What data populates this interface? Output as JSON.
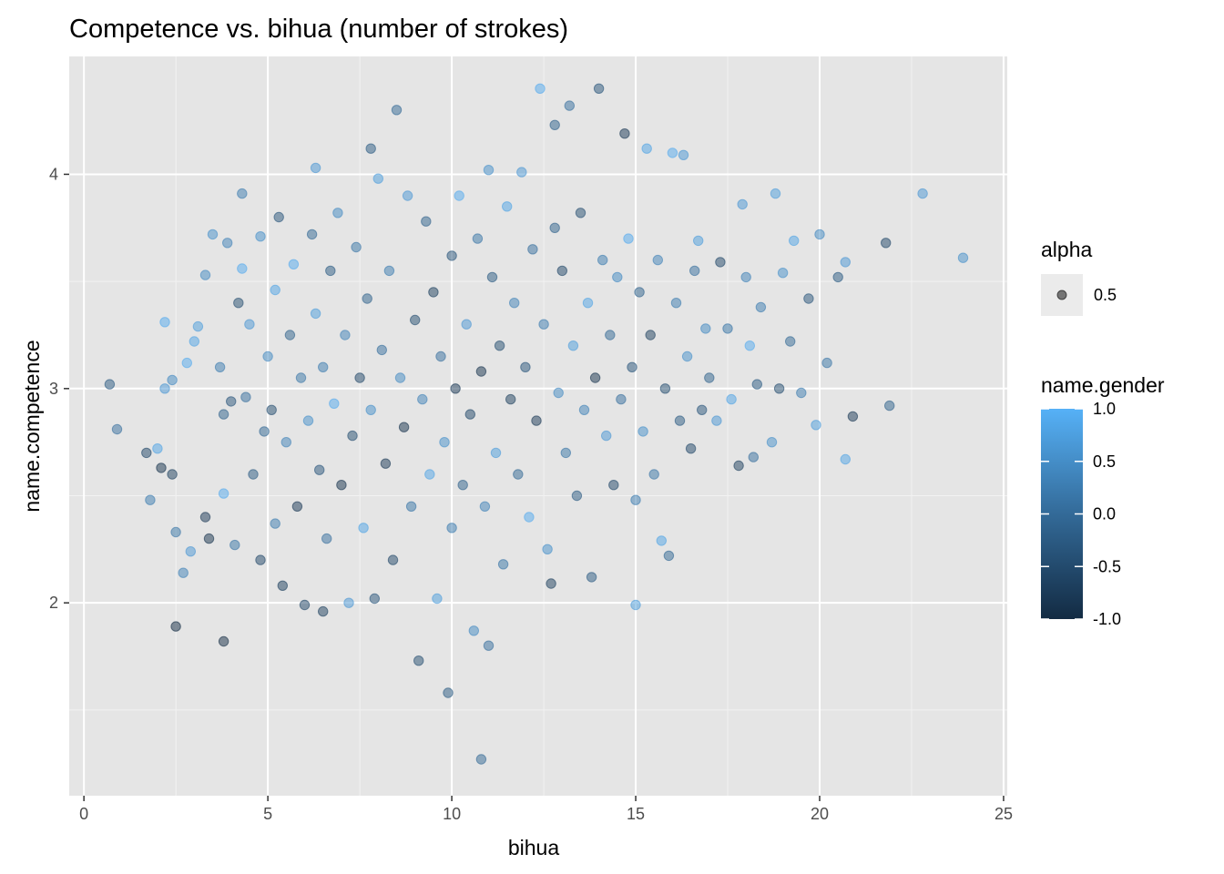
{
  "chart_data": {
    "type": "scatter",
    "title": "Competence vs. bihua (number of strokes)",
    "xlabel": "bihua",
    "ylabel": "name.competence",
    "xlim": [
      -0.4,
      25.1
    ],
    "ylim": [
      1.1,
      4.55
    ],
    "x_ticks": [
      0,
      5,
      10,
      15,
      20,
      25
    ],
    "x_tick_labels": [
      "0",
      "5",
      "10",
      "15",
      "20",
      "25"
    ],
    "y_ticks": [
      2,
      3,
      4
    ],
    "y_tick_labels": [
      "2",
      "3",
      "4"
    ],
    "grid": true,
    "background": "#e5e5e5",
    "point_alpha": 0.5,
    "color_scale": {
      "low": "#132b43",
      "high": "#56b1f7",
      "domain": [
        -1.0,
        1.0
      ]
    },
    "legend": {
      "position": "right",
      "alpha": {
        "title": "alpha",
        "label": "0.5"
      },
      "color": {
        "title": "name.gender",
        "labels": [
          "1.0",
          "0.5",
          "0.0",
          "-0.5",
          "-1.0"
        ],
        "values": [
          1.0,
          0.5,
          0.0,
          -0.5,
          -1.0
        ]
      }
    },
    "points": [
      [
        0.7,
        3.02,
        -0.3
      ],
      [
        0.9,
        2.81,
        0.0
      ],
      [
        1.7,
        2.7,
        -0.6
      ],
      [
        1.8,
        2.48,
        0.2
      ],
      [
        2.0,
        2.72,
        0.8
      ],
      [
        2.1,
        2.63,
        -0.9
      ],
      [
        2.2,
        3.31,
        0.9
      ],
      [
        2.2,
        3.0,
        0.6
      ],
      [
        2.4,
        2.6,
        -0.7
      ],
      [
        2.4,
        3.04,
        0.4
      ],
      [
        2.5,
        1.89,
        -1.0
      ],
      [
        2.5,
        2.33,
        0.1
      ],
      [
        2.7,
        2.14,
        0.3
      ],
      [
        2.8,
        3.12,
        0.9
      ],
      [
        2.9,
        2.24,
        0.6
      ],
      [
        3.0,
        3.22,
        0.8
      ],
      [
        3.1,
        3.29,
        0.7
      ],
      [
        3.3,
        3.53,
        0.4
      ],
      [
        3.3,
        2.4,
        -0.8
      ],
      [
        3.4,
        2.3,
        -0.9
      ],
      [
        3.5,
        3.72,
        0.5
      ],
      [
        3.7,
        3.1,
        0.2
      ],
      [
        3.8,
        2.88,
        -0.2
      ],
      [
        3.8,
        2.51,
        0.9
      ],
      [
        3.8,
        1.82,
        -1.0
      ],
      [
        3.9,
        3.68,
        0.3
      ],
      [
        4.0,
        2.94,
        -0.4
      ],
      [
        4.1,
        2.27,
        0.1
      ],
      [
        4.2,
        3.4,
        -0.5
      ],
      [
        4.3,
        3.91,
        0.2
      ],
      [
        4.3,
        3.56,
        0.9
      ],
      [
        4.4,
        2.96,
        0.0
      ],
      [
        4.5,
        3.3,
        0.6
      ],
      [
        4.6,
        2.6,
        -0.3
      ],
      [
        4.8,
        3.71,
        0.5
      ],
      [
        4.8,
        2.2,
        -0.6
      ],
      [
        4.9,
        2.8,
        -0.1
      ],
      [
        5.0,
        3.15,
        0.4
      ],
      [
        5.1,
        2.9,
        -0.5
      ],
      [
        5.2,
        2.37,
        0.2
      ],
      [
        5.2,
        3.46,
        0.8
      ],
      [
        5.3,
        3.8,
        -0.4
      ],
      [
        5.4,
        2.08,
        -0.7
      ],
      [
        5.5,
        2.75,
        0.3
      ],
      [
        5.6,
        3.25,
        -0.2
      ],
      [
        5.7,
        3.58,
        0.9
      ],
      [
        5.8,
        2.45,
        -0.8
      ],
      [
        5.9,
        3.05,
        0.1
      ],
      [
        6.0,
        1.99,
        -0.6
      ],
      [
        6.1,
        2.85,
        0.5
      ],
      [
        6.2,
        3.72,
        -0.1
      ],
      [
        6.3,
        3.35,
        0.7
      ],
      [
        6.3,
        4.03,
        0.6
      ],
      [
        6.4,
        2.62,
        -0.4
      ],
      [
        6.5,
        1.96,
        -0.7
      ],
      [
        6.5,
        3.1,
        0.2
      ],
      [
        6.6,
        2.3,
        0.0
      ],
      [
        6.7,
        3.55,
        -0.3
      ],
      [
        6.8,
        2.93,
        0.9
      ],
      [
        6.9,
        3.82,
        0.4
      ],
      [
        7.0,
        2.55,
        -0.9
      ],
      [
        7.1,
        3.25,
        0.3
      ],
      [
        7.2,
        2.0,
        0.6
      ],
      [
        7.3,
        2.78,
        -0.5
      ],
      [
        7.4,
        3.66,
        0.1
      ],
      [
        7.5,
        3.05,
        -0.6
      ],
      [
        7.6,
        2.35,
        0.8
      ],
      [
        7.7,
        3.42,
        -0.2
      ],
      [
        7.8,
        2.9,
        0.5
      ],
      [
        7.8,
        4.12,
        -0.3
      ],
      [
        7.9,
        2.02,
        -0.4
      ],
      [
        8.0,
        3.98,
        0.7
      ],
      [
        8.1,
        3.18,
        0.0
      ],
      [
        8.2,
        2.65,
        -0.8
      ],
      [
        8.3,
        3.55,
        0.2
      ],
      [
        8.4,
        2.2,
        -0.6
      ],
      [
        8.5,
        4.3,
        -0.1
      ],
      [
        8.6,
        3.05,
        0.4
      ],
      [
        8.7,
        2.82,
        -0.9
      ],
      [
        8.8,
        3.9,
        0.6
      ],
      [
        8.9,
        2.45,
        0.1
      ],
      [
        9.0,
        3.32,
        -0.5
      ],
      [
        9.1,
        1.73,
        -0.5
      ],
      [
        9.2,
        2.95,
        0.3
      ],
      [
        9.3,
        3.78,
        -0.2
      ],
      [
        9.4,
        2.6,
        0.8
      ],
      [
        9.5,
        3.45,
        -0.7
      ],
      [
        9.6,
        2.02,
        0.7
      ],
      [
        9.7,
        3.15,
        0.0
      ],
      [
        9.8,
        2.75,
        0.5
      ],
      [
        9.9,
        1.58,
        -0.3
      ],
      [
        10.0,
        3.62,
        -0.4
      ],
      [
        10.0,
        2.35,
        0.2
      ],
      [
        10.1,
        3.0,
        -0.8
      ],
      [
        10.2,
        3.9,
        0.9
      ],
      [
        10.3,
        2.55,
        -0.2
      ],
      [
        10.4,
        3.3,
        0.6
      ],
      [
        10.5,
        2.88,
        -0.6
      ],
      [
        10.6,
        1.87,
        0.4
      ],
      [
        10.7,
        3.7,
        0.1
      ],
      [
        10.8,
        1.27,
        -0.1
      ],
      [
        10.8,
        3.08,
        -0.9
      ],
      [
        10.9,
        2.45,
        0.3
      ],
      [
        11.0,
        4.02,
        0.5
      ],
      [
        11.0,
        1.8,
        0.0
      ],
      [
        11.1,
        3.52,
        -0.3
      ],
      [
        11.2,
        2.7,
        0.7
      ],
      [
        11.3,
        3.2,
        -0.5
      ],
      [
        11.4,
        2.18,
        0.1
      ],
      [
        11.5,
        3.85,
        0.8
      ],
      [
        11.6,
        2.95,
        -0.7
      ],
      [
        11.7,
        3.4,
        0.3
      ],
      [
        11.8,
        2.6,
        -0.1
      ],
      [
        11.9,
        4.01,
        0.6
      ],
      [
        12.0,
        3.1,
        -0.4
      ],
      [
        12.1,
        2.4,
        0.9
      ],
      [
        12.2,
        3.65,
        0.0
      ],
      [
        12.3,
        2.85,
        -0.8
      ],
      [
        12.4,
        4.4,
        0.9
      ],
      [
        12.5,
        3.3,
        0.2
      ],
      [
        12.6,
        2.25,
        0.5
      ],
      [
        12.7,
        2.09,
        -0.7
      ],
      [
        12.8,
        3.75,
        -0.2
      ],
      [
        12.8,
        4.23,
        -0.2
      ],
      [
        12.9,
        2.98,
        0.4
      ],
      [
        13.0,
        3.55,
        -0.6
      ],
      [
        13.1,
        2.7,
        0.1
      ],
      [
        13.2,
        4.32,
        0.0
      ],
      [
        13.3,
        3.2,
        0.7
      ],
      [
        13.4,
        2.5,
        -0.3
      ],
      [
        13.5,
        3.82,
        -0.5
      ],
      [
        13.6,
        2.9,
        0.3
      ],
      [
        13.7,
        3.4,
        0.8
      ],
      [
        13.8,
        2.12,
        -0.3
      ],
      [
        13.9,
        3.05,
        -0.9
      ],
      [
        14.0,
        4.4,
        -0.4
      ],
      [
        14.1,
        3.6,
        0.2
      ],
      [
        14.2,
        2.78,
        0.6
      ],
      [
        14.3,
        3.25,
        -0.1
      ],
      [
        14.4,
        2.55,
        -0.6
      ],
      [
        14.5,
        3.52,
        0.4
      ],
      [
        14.6,
        2.95,
        0.0
      ],
      [
        14.7,
        4.19,
        -0.8
      ],
      [
        14.8,
        3.7,
        0.9
      ],
      [
        14.9,
        3.1,
        -0.4
      ],
      [
        15.0,
        2.48,
        0.2
      ],
      [
        15.0,
        1.99,
        0.7
      ],
      [
        15.1,
        3.45,
        -0.2
      ],
      [
        15.2,
        2.8,
        0.5
      ],
      [
        15.3,
        4.12,
        0.8
      ],
      [
        15.4,
        3.25,
        -0.7
      ],
      [
        15.5,
        2.6,
        0.1
      ],
      [
        15.6,
        3.6,
        0.3
      ],
      [
        15.7,
        2.29,
        0.8
      ],
      [
        15.8,
        3.0,
        -0.5
      ],
      [
        15.9,
        2.22,
        -0.1
      ],
      [
        16.0,
        4.1,
        0.9
      ],
      [
        16.1,
        3.4,
        0.2
      ],
      [
        16.2,
        2.85,
        -0.3
      ],
      [
        16.3,
        4.09,
        0.6
      ],
      [
        16.4,
        3.15,
        0.5
      ],
      [
        16.5,
        2.72,
        -0.6
      ],
      [
        16.6,
        3.55,
        0.0
      ],
      [
        16.7,
        3.69,
        0.7
      ],
      [
        16.8,
        2.9,
        -0.4
      ],
      [
        16.9,
        3.28,
        0.4
      ],
      [
        17.0,
        3.05,
        -0.2
      ],
      [
        17.2,
        2.85,
        0.6
      ],
      [
        17.3,
        3.59,
        -0.6
      ],
      [
        17.5,
        3.28,
        0.1
      ],
      [
        17.6,
        2.95,
        0.8
      ],
      [
        17.8,
        2.64,
        -0.7
      ],
      [
        17.9,
        3.86,
        0.6
      ],
      [
        18.0,
        3.52,
        0.3
      ],
      [
        18.1,
        3.2,
        0.9
      ],
      [
        18.2,
        2.68,
        0.0
      ],
      [
        18.3,
        3.02,
        -0.3
      ],
      [
        18.4,
        3.38,
        0.2
      ],
      [
        18.7,
        2.75,
        0.5
      ],
      [
        18.8,
        3.91,
        0.7
      ],
      [
        18.9,
        3.0,
        -0.5
      ],
      [
        19.0,
        3.54,
        0.5
      ],
      [
        19.2,
        3.22,
        -0.1
      ],
      [
        19.3,
        3.69,
        0.8
      ],
      [
        19.5,
        2.98,
        0.2
      ],
      [
        19.7,
        3.42,
        -0.4
      ],
      [
        19.9,
        2.83,
        0.7
      ],
      [
        20.0,
        3.72,
        0.4
      ],
      [
        20.2,
        3.12,
        0.1
      ],
      [
        20.5,
        3.52,
        -0.3
      ],
      [
        20.7,
        3.59,
        0.6
      ],
      [
        20.7,
        2.67,
        0.8
      ],
      [
        20.9,
        2.87,
        -0.8
      ],
      [
        21.8,
        3.68,
        -0.6
      ],
      [
        21.9,
        2.92,
        -0.2
      ],
      [
        22.8,
        3.91,
        0.6
      ],
      [
        23.9,
        3.61,
        0.5
      ]
    ]
  }
}
